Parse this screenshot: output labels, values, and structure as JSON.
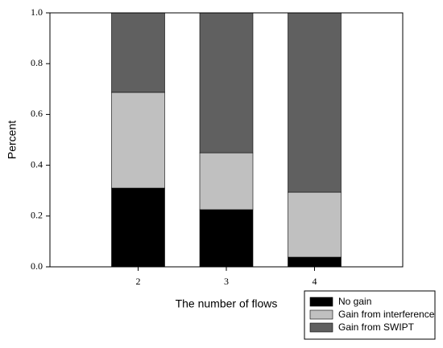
{
  "chart_data": {
    "type": "stacked-bar",
    "x_label": "The number of flows",
    "y_label": "Percent",
    "categories": [
      "2",
      "3",
      "4"
    ],
    "series": [
      {
        "name": "No gain",
        "color": "#000000",
        "values": [
          0.31,
          0.225,
          0.038
        ]
      },
      {
        "name": "Gain from interference",
        "color": "#c0c0c0",
        "values": [
          0.377,
          0.224,
          0.256
        ]
      },
      {
        "name": "Gain from SWIPT",
        "color": "#606060",
        "values": [
          0.313,
          0.551,
          0.706
        ]
      }
    ],
    "ylim": [
      0,
      1
    ],
    "yticks": [
      {
        "value": 0,
        "label": "0.0"
      },
      0.2,
      0.4,
      0.6,
      0.8,
      {
        "value": 1,
        "label": "1.0"
      }
    ],
    "legend": "lower right"
  }
}
